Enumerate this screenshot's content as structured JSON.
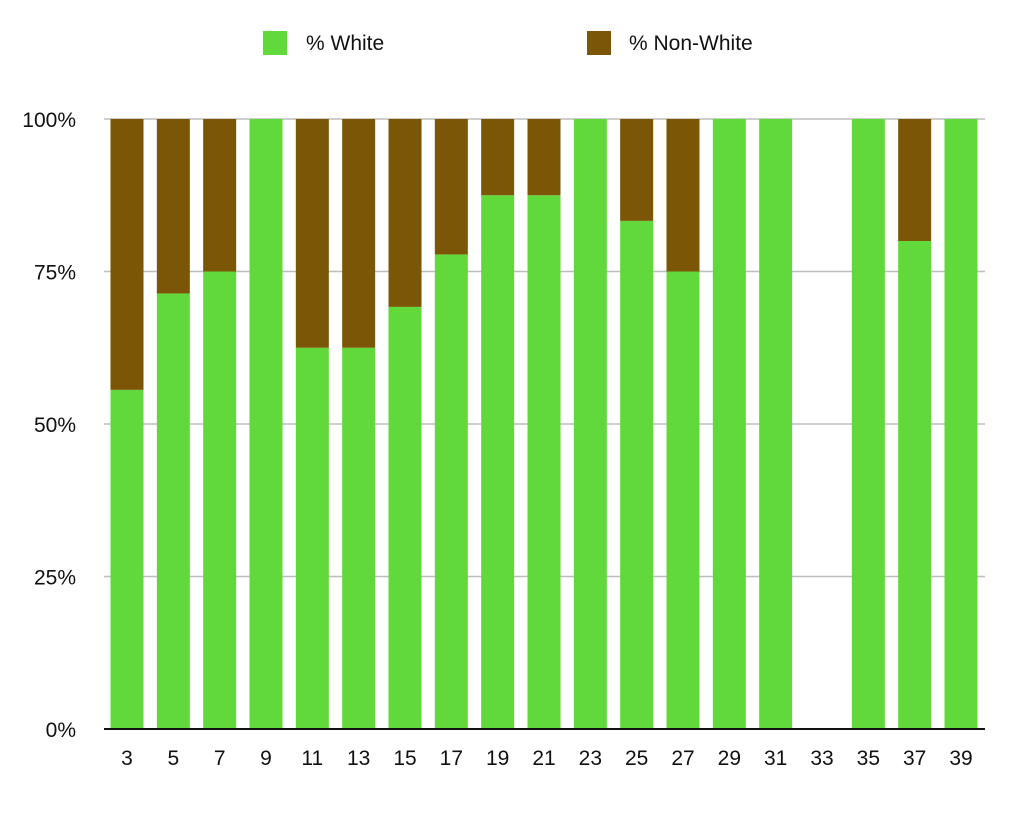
{
  "chart_data": {
    "type": "bar",
    "stacked": true,
    "percent": true,
    "categories": [
      "3",
      "5",
      "7",
      "9",
      "11",
      "13",
      "15",
      "17",
      "19",
      "21",
      "23",
      "25",
      "27",
      "29",
      "31",
      "33",
      "35",
      "37",
      "39"
    ],
    "series": [
      {
        "name": "% White",
        "color": "#62d93a",
        "values": [
          55.6,
          71.4,
          75,
          100,
          62.5,
          62.5,
          69.2,
          77.8,
          87.5,
          87.5,
          100,
          83.3,
          75,
          100,
          100,
          0,
          100,
          80,
          100
        ]
      },
      {
        "name": "% Non-White",
        "color": "#7a5606",
        "values": [
          44.4,
          28.6,
          25,
          0,
          37.5,
          37.5,
          30.8,
          22.2,
          12.5,
          12.5,
          0,
          16.7,
          25,
          0,
          0,
          0,
          0,
          20,
          0
        ]
      }
    ],
    "yticks": [
      "0%",
      "25%",
      "50%",
      "75%",
      "100%"
    ],
    "ylim": [
      0,
      100
    ],
    "grid": true,
    "legend": "top"
  }
}
